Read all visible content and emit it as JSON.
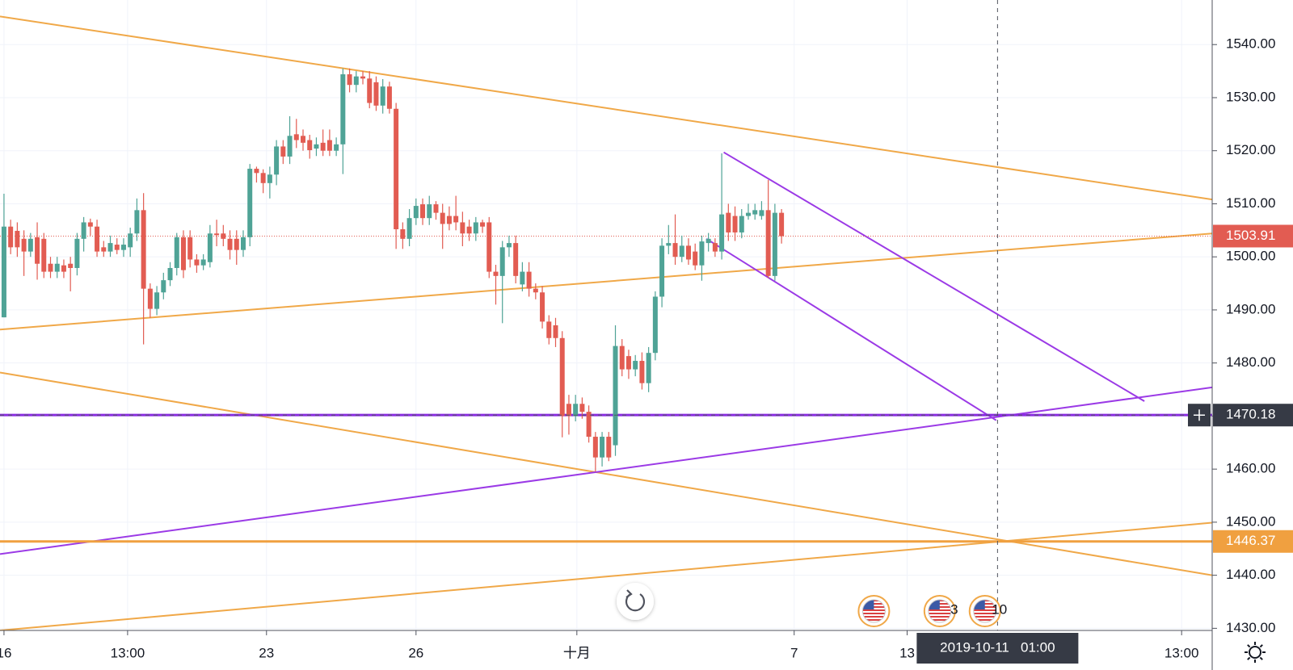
{
  "chart_data": {
    "type": "candlestick",
    "up_color": "#4fa396",
    "down_color": "#e25c52",
    "xlim": [
      -0.6,
      181.8
    ],
    "ylim": [
      1429.6,
      1548.4
    ],
    "grid": true,
    "xticks": [
      {
        "value": 0,
        "label": "16"
      },
      {
        "value": 18.6,
        "label": "13:00"
      },
      {
        "value": 39.5,
        "label": "23"
      },
      {
        "value": 62,
        "label": "26"
      },
      {
        "value": 86.2,
        "label": "十月"
      },
      {
        "value": 118.9,
        "label": "7"
      },
      {
        "value": 135.9,
        "label": "13"
      },
      {
        "value": 177.2,
        "label": "13:00"
      }
    ],
    "yticks": [
      {
        "value": 1430,
        "label": "1430.00"
      },
      {
        "value": 1440,
        "label": "1440.00"
      },
      {
        "value": 1450,
        "label": "1450.00"
      },
      {
        "value": 1460,
        "label": "1460.00"
      },
      {
        "value": 1470,
        "label": "1470.00"
      },
      {
        "value": 1480,
        "label": "1480.00"
      },
      {
        "value": 1490,
        "label": "1490.00"
      },
      {
        "value": 1500,
        "label": "1500.00"
      },
      {
        "value": 1510,
        "label": "1510.00"
      },
      {
        "value": 1520,
        "label": "1520.00"
      },
      {
        "value": 1530,
        "label": "1530.00"
      },
      {
        "value": 1540,
        "label": "1540.00"
      }
    ],
    "open": [
      1488.6,
      1505.7,
      1504.9,
      1503.4,
      1501.0,
      1503.7,
      1503.4,
      1498.7,
      1497.2,
      1498.4,
      1498.7,
      1497.9,
      1503.4,
      1506.5,
      1505.7,
      1501.8,
      1501.0,
      1502.3,
      1501.3,
      1501.8,
      1504.4,
      1508.8,
      1494.0,
      1490.2,
      1493.3,
      1495.6,
      1497.9,
      1503.7,
      1503.7,
      1499.5,
      1498.4,
      1499.0,
      1504.4,
      1504.4,
      1503.4,
      1503.4,
      1501.3,
      1503.7,
      1516.6,
      1515.8,
      1513.9,
      1515.5,
      1520.8,
      1518.9,
      1523.1,
      1522.8,
      1522.0,
      1520.4,
      1521.5,
      1522.0,
      1520.0,
      1521.2,
      1534.4,
      1532.4,
      1534.0,
      1533.6,
      1532.9,
      1528.5,
      1532.1,
      1527.9,
      1505.2,
      1503.4,
      1507.3,
      1509.9,
      1507.3,
      1509.9,
      1508.3,
      1507.7,
      1507.7,
      1506.5,
      1505.7,
      1504.4,
      1506.5,
      1506.5,
      1497.2,
      1496.4,
      1501.8,
      1502.6,
      1494.8,
      1497.2,
      1494.0,
      1493.3,
      1487.8,
      1487.1,
      1484.7,
      1472.3,
      1470.0,
      1472.3,
      1470.8,
      1466.1,
      1462.2,
      1466.1,
      1464.5,
      1483.2,
      1481.3,
      1478.8,
      1480.4,
      1476.2,
      1481.9,
      1492.5,
      1502.1,
      1502.6,
      1500.0,
      1502.1,
      1501.0,
      1498.4,
      1502.6,
      1502.6,
      1501.0,
      1508.3,
      1507.7,
      1504.6,
      1507.7,
      1508.0,
      1507.7,
      1508.8,
      1496.4,
      1508.3
    ],
    "high": [
      1511.9,
      1507.0,
      1506.5,
      1505.0,
      1504.5,
      1506.5,
      1504.5,
      1500.0,
      1500.0,
      1499.5,
      1500.0,
      1504.5,
      1507.5,
      1507.2,
      1507.0,
      1503.0,
      1504.0,
      1503.5,
      1503.5,
      1505.5,
      1511.0,
      1512.0,
      1495.0,
      1494.5,
      1497.0,
      1499.0,
      1504.5,
      1505.0,
      1505.0,
      1500.5,
      1500.5,
      1506.0,
      1507.0,
      1506.0,
      1505.0,
      1505.0,
      1505.0,
      1517.5,
      1517.0,
      1516.5,
      1517.0,
      1522.0,
      1522.0,
      1526.5,
      1526.0,
      1524.0,
      1523.0,
      1522.5,
      1524.0,
      1524.0,
      1522.5,
      1535.5,
      1535.5,
      1535.0,
      1535.0,
      1535.0,
      1534.0,
      1533.5,
      1533.0,
      1529.0,
      1506.5,
      1509.0,
      1511.0,
      1511.0,
      1511.5,
      1510.5,
      1510.0,
      1509.5,
      1511.5,
      1508.5,
      1507.0,
      1507.5,
      1507.0,
      1507.5,
      1498.5,
      1503.0,
      1504.0,
      1504.0,
      1499.0,
      1499.0,
      1495.0,
      1494.5,
      1489.0,
      1488.5,
      1486.0,
      1474.0,
      1474.0,
      1473.5,
      1472.0,
      1467.0,
      1467.0,
      1467.0,
      1487.1,
      1484.5,
      1482.5,
      1481.5,
      1482.0,
      1483.0,
      1493.5,
      1503.5,
      1506.0,
      1508.0,
      1504.0,
      1503.5,
      1502.5,
      1504.0,
      1504.5,
      1503.5,
      1519.5,
      1510.0,
      1509.5,
      1509.0,
      1510.0,
      1510.0,
      1510.5,
      1514.5,
      1510.0,
      1509.0
    ],
    "low": [
      1488.6,
      1500.5,
      1500.0,
      1496.4,
      1500.0,
      1495.7,
      1496.0,
      1496.0,
      1496.0,
      1496.0,
      1493.5,
      1496.5,
      1501.0,
      1504.0,
      1500.0,
      1500.0,
      1500.0,
      1500.5,
      1500.0,
      1500.0,
      1503.0,
      1483.5,
      1488.5,
      1489.0,
      1492.0,
      1494.5,
      1496.5,
      1496.0,
      1498.0,
      1497.0,
      1497.5,
      1498.0,
      1502.0,
      1502.0,
      1499.5,
      1498.5,
      1500.0,
      1502.0,
      1514.0,
      1512.0,
      1511.0,
      1513.5,
      1517.5,
      1517.5,
      1520.5,
      1520.0,
      1518.5,
      1519.0,
      1519.0,
      1519.0,
      1519.0,
      1515.6,
      1531.0,
      1531.0,
      1532.5,
      1528.0,
      1527.5,
      1527.0,
      1527.0,
      1501.5,
      1501.5,
      1502.0,
      1506.0,
      1506.0,
      1506.0,
      1507.0,
      1501.5,
      1505.0,
      1505.0,
      1502.0,
      1503.0,
      1503.0,
      1504.5,
      1496.0,
      1491.0,
      1487.5,
      1500.0,
      1495.0,
      1493.5,
      1492.5,
      1492.0,
      1486.5,
      1483.5,
      1483.0,
      1466.0,
      1466.5,
      1469.0,
      1469.5,
      1465.0,
      1459.5,
      1460.5,
      1461.5,
      1462.5,
      1477.5,
      1477.0,
      1477.5,
      1475.0,
      1474.5,
      1480.5,
      1490.5,
      1500.5,
      1498.5,
      1499.0,
      1498.5,
      1497.5,
      1495.5,
      1501.0,
      1500.0,
      1499.5,
      1503.0,
      1503.0,
      1503.5,
      1507.0,
      1507.0,
      1507.0,
      1496.0,
      1495.5,
      1502.5
    ],
    "close": [
      1505.7,
      1501.8,
      1501.8,
      1501.0,
      1503.4,
      1498.7,
      1497.2,
      1497.2,
      1498.7,
      1497.2,
      1497.9,
      1503.4,
      1506.5,
      1505.7,
      1501.0,
      1501.0,
      1502.6,
      1501.3,
      1502.3,
      1504.4,
      1508.8,
      1494.0,
      1490.2,
      1493.3,
      1495.6,
      1497.9,
      1503.7,
      1497.5,
      1499.5,
      1498.4,
      1499.5,
      1504.4,
      1504.1,
      1503.4,
      1501.3,
      1501.3,
      1503.7,
      1516.6,
      1515.8,
      1513.9,
      1515.5,
      1520.8,
      1518.9,
      1522.8,
      1522.0,
      1521.5,
      1520.1,
      1521.2,
      1520.0,
      1520.0,
      1521.2,
      1534.4,
      1532.4,
      1534.0,
      1533.6,
      1529.0,
      1528.5,
      1532.1,
      1527.9,
      1505.2,
      1503.4,
      1507.3,
      1509.6,
      1507.3,
      1509.9,
      1508.3,
      1506.2,
      1506.2,
      1506.5,
      1504.4,
      1504.4,
      1506.5,
      1505.7,
      1497.2,
      1496.4,
      1501.8,
      1502.6,
      1496.4,
      1497.2,
      1494.0,
      1493.3,
      1487.8,
      1484.7,
      1484.7,
      1470.0,
      1470.0,
      1472.3,
      1470.8,
      1466.1,
      1462.2,
      1466.1,
      1462.2,
      1483.2,
      1478.8,
      1478.8,
      1480.4,
      1476.2,
      1481.9,
      1492.5,
      1502.1,
      1502.6,
      1500.0,
      1502.1,
      1499.5,
      1498.4,
      1502.9,
      1503.4,
      1501.0,
      1508.0,
      1504.6,
      1504.6,
      1507.7,
      1508.3,
      1508.8,
      1508.8,
      1496.4,
      1508.3,
      1503.9
    ],
    "trendlines": [
      {
        "color": "#f0a848",
        "points": [
          [
            -0.6,
            1545.3
          ],
          [
            181.8,
            1510.8
          ]
        ]
      },
      {
        "color": "#f0a848",
        "points": [
          [
            -0.6,
            1486.3
          ],
          [
            181.8,
            1504.4
          ]
        ]
      },
      {
        "color": "#f0a848",
        "points": [
          [
            -0.6,
            1478.2
          ],
          [
            181.8,
            1440.0
          ]
        ]
      },
      {
        "color": "#f0a848",
        "points": [
          [
            -0.6,
            1429.6
          ],
          [
            181.8,
            1449.9
          ]
        ]
      },
      {
        "color": "#9b3ae6",
        "points": [
          [
            -0.6,
            1444.0
          ],
          [
            181.8,
            1475.4
          ]
        ]
      },
      {
        "color": "#9b3ae6",
        "points": [
          [
            108.3,
            1519.7
          ],
          [
            171.6,
            1472.8
          ]
        ]
      },
      {
        "color": "#9b3ae6",
        "points": [
          [
            105.7,
            1503.4
          ],
          [
            149.3,
            1469.2
          ]
        ]
      }
    ],
    "levels": [
      {
        "value": 1503.91,
        "color": "#e25c52",
        "style": "dotted",
        "tag": true
      },
      {
        "value": 1446.37,
        "color": "#f0a040",
        "style": "thick",
        "tag": true
      },
      {
        "value": 1470.2,
        "color": "#8a2be2",
        "style": "thick",
        "tag": false
      }
    ],
    "crosshair": {
      "x": 149.5,
      "y": 1470.18,
      "time": "2019-10-11   01:00"
    },
    "events": [
      {
        "x": 130.9
      },
      {
        "x": 140.8,
        "label": "3"
      },
      {
        "x": 147.6,
        "label": "10"
      }
    ]
  }
}
